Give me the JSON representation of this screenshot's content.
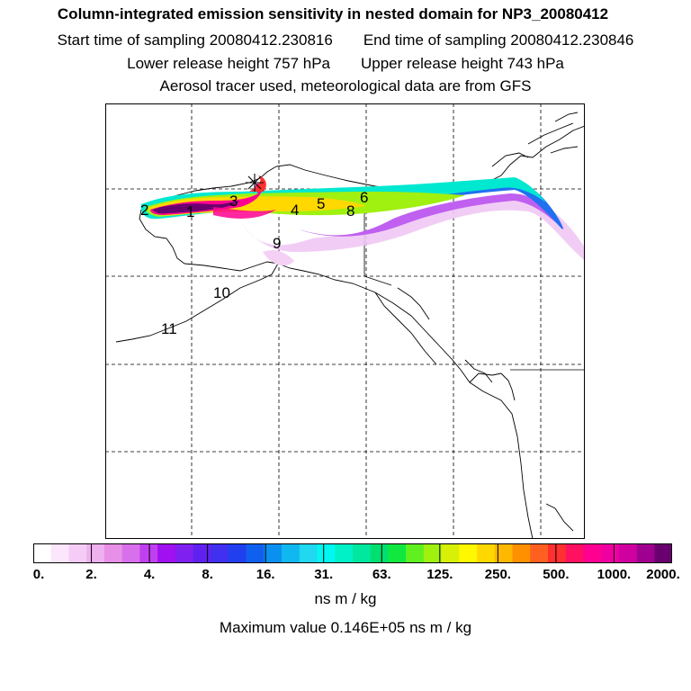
{
  "header": {
    "title": "Column-integrated emission sensitivity in nested domain for NP3_20080412",
    "start_sampling": "Start time of sampling 20080412.230816",
    "end_sampling": "End time of sampling 20080412.230846",
    "lower_release": "Lower release height  757 hPa",
    "upper_release": "Upper release height  743 hPa",
    "tracer_note": "Aerosol tracer used, meteorological data are from GFS"
  },
  "map": {
    "trajectory_labels": [
      "1",
      "2",
      "3",
      "4",
      "5",
      "6",
      "8",
      "9",
      "10",
      "11"
    ],
    "release_marker": "release-point-star"
  },
  "colorbar": {
    "tick_labels": [
      "0.",
      "2.",
      "4.",
      "8.",
      "16.",
      "31.",
      "63.",
      "125.",
      "250.",
      "500.",
      "1000.",
      "2000."
    ],
    "colors": [
      "#ffffff",
      "#fbe6fb",
      "#f5ccf5",
      "#eeb0ee",
      "#e890e8",
      "#d870ec",
      "#c040f0",
      "#a010f0",
      "#8020f0",
      "#6020f0",
      "#4030f0",
      "#2040f0",
      "#1060f0",
      "#0a90f0",
      "#10b8f0",
      "#20d8f0",
      "#00f8f0",
      "#00f0c8",
      "#00e8a0",
      "#00e070",
      "#10e840",
      "#60f020",
      "#a0f010",
      "#d8f008",
      "#fff800",
      "#ffd800",
      "#ffb800",
      "#ff9000",
      "#ff6020",
      "#ff3030",
      "#ff1060",
      "#ff0090",
      "#f000a0",
      "#d000a0",
      "#a00090",
      "#6a0070"
    ],
    "units": "ns m / kg"
  },
  "footer": {
    "max_value": "Maximum value  0.146E+05 ns m / kg"
  }
}
